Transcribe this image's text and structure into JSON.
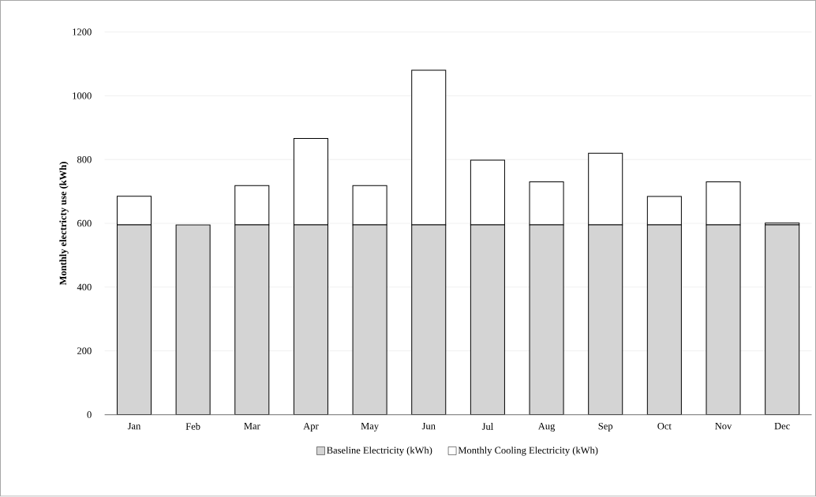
{
  "chart_data": {
    "type": "bar",
    "stacked": true,
    "ylabel": "Monthly electricty use (kWh)",
    "categories": [
      "Jan",
      "Feb",
      "Mar",
      "Apr",
      "May",
      "Jun",
      "Jul",
      "Aug",
      "Sep",
      "Oct",
      "Nov",
      "Dec"
    ],
    "series": [
      {
        "name": "Baseline Electricity (kWh)",
        "color": "#d4d4d4",
        "values": [
          595,
          595,
          595,
          595,
          595,
          595,
          595,
          595,
          595,
          595,
          595,
          595
        ]
      },
      {
        "name": "Monthly Cooling Electricity (kWh)",
        "color": "#ffffff",
        "values": [
          90,
          0,
          123,
          271,
          123,
          485,
          203,
          135,
          225,
          89,
          135,
          6
        ]
      }
    ],
    "ylim": [
      0,
      1200
    ],
    "yticks": [
      0,
      200,
      400,
      600,
      800,
      1000,
      1200
    ],
    "grid": "y",
    "legend": "bottom"
  }
}
